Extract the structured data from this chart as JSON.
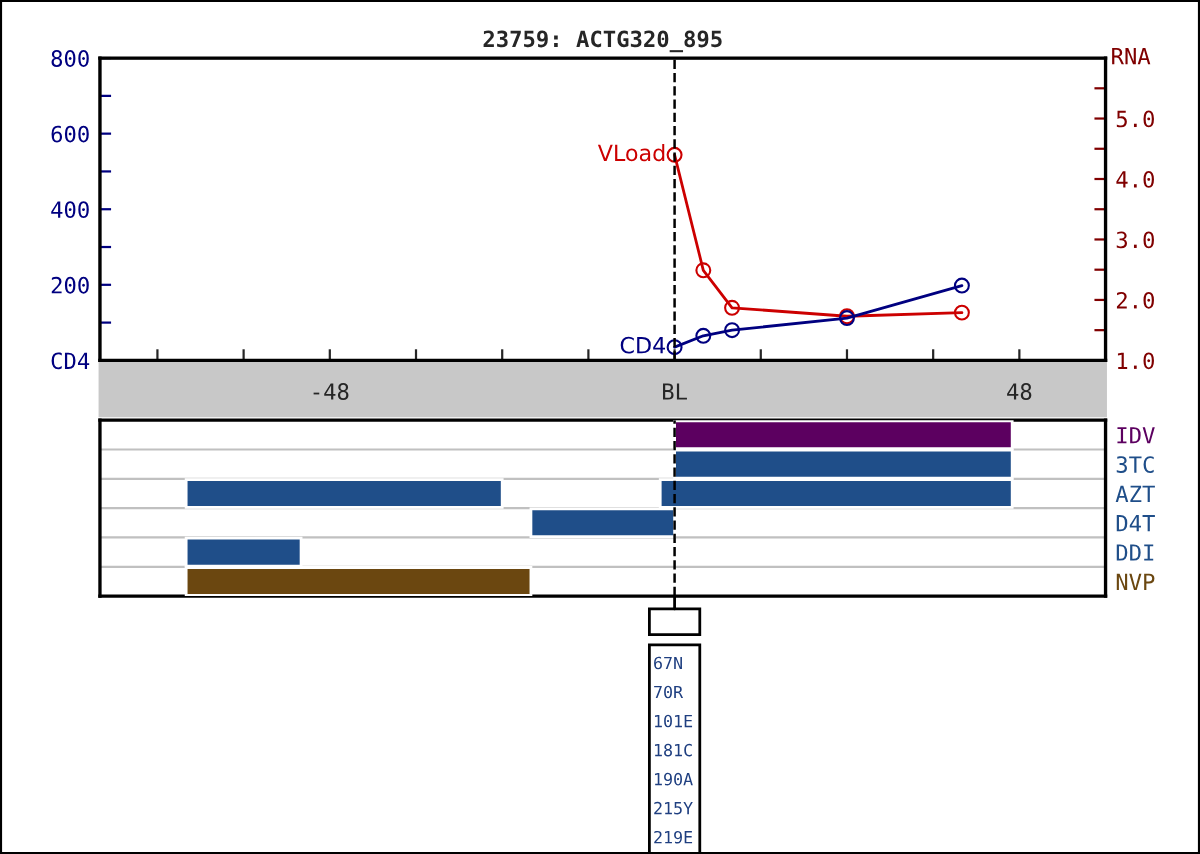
{
  "chart_data": [
    {
      "type": "line",
      "title": "23759: ACTG320_895",
      "y2label": "RNA",
      "marker": "circle",
      "line_style": "solid",
      "grid": false,
      "legend": false,
      "xlim": [
        -80,
        60
      ],
      "xticks": [
        {
          "value": -72,
          "label": null
        },
        {
          "value": -60,
          "label": null
        },
        -48,
        {
          "value": -36,
          "label": null
        },
        {
          "value": -24,
          "label": null
        },
        {
          "value": -12,
          "label": null
        },
        {
          "value": 0,
          "label": "BL"
        },
        {
          "value": 12,
          "label": null
        },
        {
          "value": 24,
          "label": null
        },
        {
          "value": 36,
          "label": null
        },
        48
      ],
      "ylim": [
        0,
        800
      ],
      "yticks": [
        {
          "value": 0,
          "label": "CD4"
        },
        {
          "value": 100,
          "label": null
        },
        200,
        {
          "value": 300,
          "label": null
        },
        400,
        {
          "value": 500,
          "label": null
        },
        600,
        {
          "value": 700,
          "label": null
        },
        800
      ],
      "y2lim": [
        1,
        6
      ],
      "y2ticks": [
        {
          "value": 1,
          "label": "1.0"
        },
        {
          "value": 1.5,
          "label": null
        },
        {
          "value": 2,
          "label": "2.0"
        },
        {
          "value": 2.5,
          "label": null
        },
        {
          "value": 3,
          "label": "3.0"
        },
        {
          "value": 3.5,
          "label": null
        },
        {
          "value": 4,
          "label": "4.0"
        },
        {
          "value": 4.5,
          "label": null
        },
        {
          "value": 5,
          "label": "5.0"
        },
        {
          "value": 5.5,
          "label": null
        }
      ],
      "ref_lines": [
        {
          "axis": "x",
          "value": 0,
          "color": "#000000",
          "line_style": "dashed"
        }
      ],
      "series": [
        {
          "name": "CD4",
          "color": "#000080",
          "x": [
            0,
            4,
            8,
            24,
            40
          ],
          "values": [
            35,
            65,
            80,
            112,
            198
          ]
        },
        {
          "name": "VLoad",
          "color": "#cc0000",
          "axis": "y2",
          "x": [
            0,
            4,
            8,
            24,
            40
          ],
          "values": [
            4.4,
            2.49,
            1.87,
            1.73,
            1.79
          ]
        }
      ]
    },
    {
      "type": "bar",
      "orientation": "horizontal",
      "tick_labels": "y",
      "grid": "y",
      "xlim": [
        -80,
        60
      ],
      "categories": [
        "IDV",
        "3TC",
        "AZT",
        "D4T",
        "DDI",
        "NVP"
      ],
      "ref_lines": [
        {
          "axis": "x",
          "value": 0,
          "color": "#000000",
          "line_style": "dashed"
        }
      ],
      "series": [
        {
          "colors": [
            "#5c0060",
            "#1f4e89",
            "#1f4e89",
            "#1f4e89",
            "#1f4e89",
            "#6b4710"
          ],
          "base": [
            0,
            0,
            -68,
            -20,
            -68,
            -68
          ],
          "values": [
            47,
            47,
            44,
            20,
            16,
            48
          ]
        },
        {
          "colors": [
            null,
            null,
            "#1f4e89",
            null,
            null,
            null
          ],
          "base": [
            null,
            null,
            -2,
            null,
            null,
            null
          ],
          "values": [
            null,
            null,
            49,
            null,
            null,
            null
          ]
        }
      ],
      "annotations": [
        "67N",
        "70R",
        "101E",
        "181C",
        "190A",
        "215Y",
        "219E"
      ]
    }
  ]
}
